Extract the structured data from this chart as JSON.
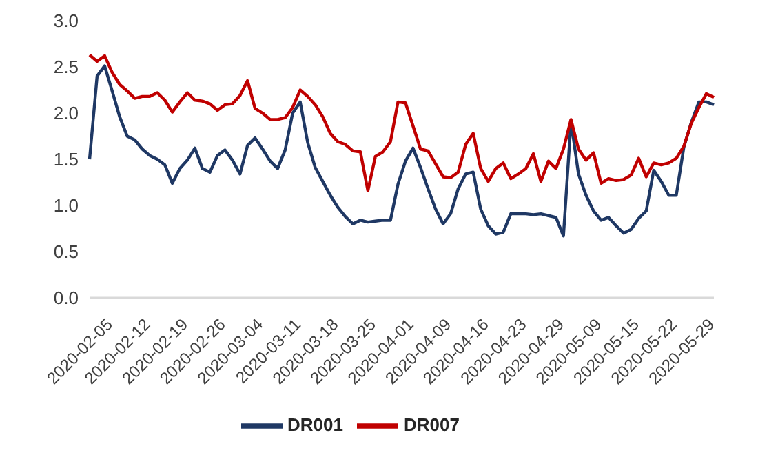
{
  "chart_data": {
    "type": "line",
    "categories": [
      null,
      null,
      null,
      "2020-02-05",
      null,
      null,
      null,
      null,
      "2020-02-12",
      null,
      null,
      null,
      null,
      "2020-02-19",
      null,
      null,
      null,
      null,
      "2020-02-26",
      null,
      null,
      null,
      null,
      "2020-03-04",
      null,
      null,
      null,
      null,
      "2020-03-11",
      null,
      null,
      null,
      null,
      "2020-03-18",
      null,
      null,
      null,
      null,
      "2020-03-25",
      null,
      null,
      null,
      null,
      "2020-04-01",
      null,
      null,
      null,
      null,
      "2020-04-09",
      null,
      null,
      null,
      null,
      "2020-04-16",
      null,
      null,
      null,
      null,
      "2020-04-23",
      null,
      null,
      null,
      null,
      "2020-04-29",
      null,
      null,
      null,
      null,
      "2020-05-09",
      null,
      null,
      null,
      null,
      "2020-05-15",
      null,
      null,
      null,
      null,
      "2020-05-22",
      null,
      null,
      null,
      null,
      "2020-05-29"
    ],
    "series": [
      {
        "name": "DR001",
        "color": "#1f3864",
        "values": [
          1.5,
          2.4,
          2.51,
          2.24,
          1.96,
          1.75,
          1.71,
          1.61,
          1.54,
          1.5,
          1.44,
          1.24,
          1.4,
          1.49,
          1.62,
          1.4,
          1.36,
          1.54,
          1.6,
          1.49,
          1.34,
          1.65,
          1.73,
          1.61,
          1.48,
          1.4,
          1.6,
          2.0,
          2.12,
          1.68,
          1.41,
          1.26,
          1.11,
          0.98,
          0.88,
          0.8,
          0.84,
          0.82,
          0.83,
          0.84,
          0.84,
          1.23,
          1.48,
          1.62,
          1.41,
          1.18,
          0.96,
          0.8,
          0.91,
          1.18,
          1.34,
          1.36,
          0.96,
          0.78,
          0.69,
          0.71,
          0.91,
          0.91,
          0.91,
          0.9,
          0.91,
          0.89,
          0.87,
          0.67,
          1.91,
          1.34,
          1.11,
          0.94,
          0.84,
          0.87,
          0.78,
          0.7,
          0.74,
          0.86,
          0.94,
          1.38,
          1.26,
          1.11,
          1.11,
          1.63,
          1.9,
          2.12,
          2.12,
          2.09
        ]
      },
      {
        "name": "DR007",
        "color": "#c00000",
        "values": [
          2.63,
          2.56,
          2.62,
          2.44,
          2.31,
          2.24,
          2.16,
          2.18,
          2.18,
          2.22,
          2.14,
          2.01,
          2.12,
          2.22,
          2.14,
          2.13,
          2.1,
          2.03,
          2.09,
          2.1,
          2.19,
          2.35,
          2.05,
          2.0,
          1.93,
          1.93,
          1.95,
          2.06,
          2.25,
          2.18,
          2.09,
          1.96,
          1.78,
          1.69,
          1.66,
          1.59,
          1.58,
          1.16,
          1.53,
          1.58,
          1.69,
          2.12,
          2.11,
          1.86,
          1.61,
          1.59,
          1.45,
          1.31,
          1.3,
          1.36,
          1.66,
          1.78,
          1.4,
          1.26,
          1.4,
          1.46,
          1.29,
          1.34,
          1.4,
          1.56,
          1.26,
          1.48,
          1.4,
          1.61,
          1.93,
          1.61,
          1.49,
          1.57,
          1.24,
          1.29,
          1.27,
          1.28,
          1.33,
          1.51,
          1.31,
          1.46,
          1.44,
          1.46,
          1.51,
          1.64,
          1.89,
          2.06,
          2.21,
          2.17
        ]
      }
    ],
    "ylim": [
      0,
      3
    ],
    "yticks": [
      {
        "value": 0,
        "label": "0.0"
      },
      0.5,
      {
        "value": 1,
        "label": "1.0"
      },
      1.5,
      {
        "value": 2,
        "label": "2.0"
      },
      2.5,
      {
        "value": 3,
        "label": "3.0"
      }
    ],
    "grid": false,
    "legend": "bottom",
    "marker": "none",
    "line_style": "solid"
  }
}
